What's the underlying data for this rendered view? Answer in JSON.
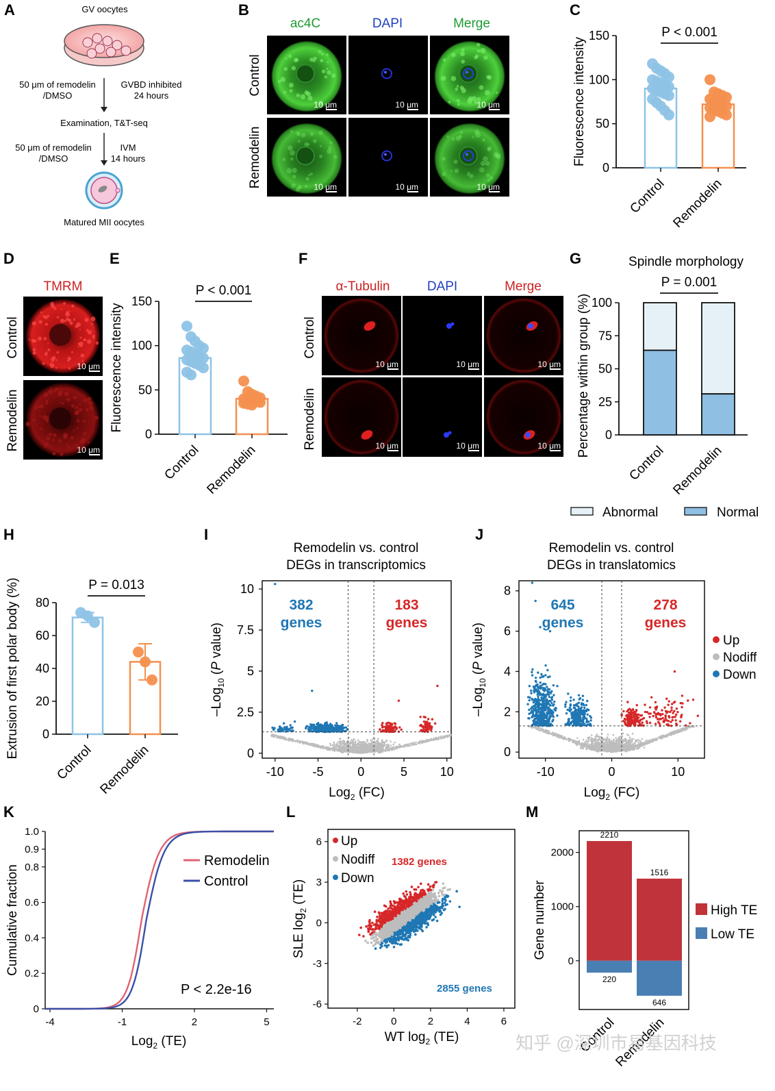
{
  "watermark": "知乎 @深圳市易基因科技",
  "colors": {
    "control": "#8ec3e6",
    "remodelin": "#f4904e",
    "up": "#d62728",
    "down": "#1f77b4",
    "nodiff": "#bdbdbd",
    "green": "#1e9a33",
    "blue": "#1f3fbf",
    "red": "#cc1f1f",
    "navy": "#2d3e9a",
    "hiTE": "#c0333a",
    "loTE": "#4a7fb3"
  },
  "A": {
    "letter": "A",
    "top": "GV oocytes",
    "s1left": "50 μm of remodelin\n/DMSO",
    "s1right": "GVBD inhibited\n24 hours",
    "mid": "Examination, T&T-seq",
    "s2left": "50 μm of remodelin\n/DMSO",
    "s2right": "IVM\n14 hours",
    "bottom": "Matured MII oocytes"
  },
  "B": {
    "letter": "B",
    "cols": [
      "ac4C",
      "DAPI",
      "Merge"
    ],
    "rows": [
      "Control",
      "Remodelin"
    ],
    "scale": "10 μm"
  },
  "C": {
    "letter": "C",
    "ylabel": "Fluorescence intensity",
    "p": "P < 0.001",
    "chart_data": {
      "type": "bar",
      "categories": [
        "Control",
        "Remodelin"
      ],
      "values": [
        90,
        72
      ],
      "ylim": [
        0,
        150
      ],
      "yticks": [
        0,
        50,
        100,
        150
      ],
      "ylabel": "Fluorescence intensity",
      "points": [
        [
          118,
          113,
          110,
          107,
          103,
          100,
          98,
          96,
          94,
          92,
          90,
          88,
          86,
          84,
          82,
          78,
          74,
          70,
          65,
          60
        ],
        [
          100,
          86,
          84,
          82,
          80,
          78,
          76,
          74,
          72,
          70,
          68,
          66,
          64,
          62,
          60,
          58
        ]
      ]
    }
  },
  "D": {
    "letter": "D",
    "title": "TMRM",
    "rows": [
      "Control",
      "Remodelin"
    ],
    "scale": "10 μm"
  },
  "E": {
    "letter": "E",
    "ylabel": "Fluorescence intensity",
    "p": "P < 0.001",
    "chart_data": {
      "type": "bar",
      "categories": [
        "Control",
        "Remodelin"
      ],
      "values": [
        86,
        40
      ],
      "ylim": [
        0,
        150
      ],
      "yticks": [
        0,
        50,
        100,
        150
      ],
      "ylabel": "Fluorescence intensity",
      "points": [
        [
          122,
          110,
          105,
          100,
          97,
          95,
          93,
          90,
          88,
          86,
          84,
          82,
          80,
          78,
          75,
          70,
          67
        ],
        [
          60,
          48,
          45,
          43,
          41,
          40,
          39,
          38,
          37,
          36,
          35,
          34,
          33
        ]
      ]
    }
  },
  "F": {
    "letter": "F",
    "cols": [
      "α-Tubulin",
      "DAPI",
      "Merge"
    ],
    "rows": [
      "Control",
      "Remodelin"
    ],
    "scale": "10 μm"
  },
  "G": {
    "letter": "G",
    "title": "Spindle morphology",
    "p": "P = 0.001",
    "ylabel": "Percentage within group  (%)",
    "chart_data": {
      "type": "bar",
      "categories": [
        "Control",
        "Remodelin"
      ],
      "series": [
        {
          "name": "Normal",
          "values": [
            64,
            31
          ]
        },
        {
          "name": "Abnormal",
          "values": [
            36,
            69
          ]
        }
      ],
      "ylim": [
        0,
        100
      ],
      "yticks": [
        0,
        25,
        50,
        75,
        100
      ]
    },
    "legend": [
      "Abnormal",
      "Normal"
    ]
  },
  "H": {
    "letter": "H",
    "ylabel": "Extrusion of first polar body (%)",
    "p": "P = 0.013",
    "chart_data": {
      "type": "bar",
      "categories": [
        "Control",
        "Remodelin"
      ],
      "values": [
        71,
        44
      ],
      "errors": [
        3,
        11
      ],
      "ylim": [
        0,
        80
      ],
      "yticks": [
        0,
        20,
        40,
        60,
        80
      ],
      "points": [
        [
          74,
          72,
          68
        ],
        [
          50,
          44,
          33
        ]
      ]
    }
  },
  "I": {
    "letter": "I",
    "title1": "Remodelin vs. control",
    "title2": "DEGs in transcriptomics",
    "downN": "382",
    "upN": "183",
    "genes": "genes",
    "xlabel": "Log2 (FC)",
    "ylabel": "-Log10 (P value)",
    "chart_data": {
      "type": "scatter",
      "xlim": [
        -11.5,
        10.5
      ],
      "ylim": [
        -0.3,
        10.5
      ],
      "xticks": [
        -10,
        -5,
        0,
        5,
        10
      ],
      "yticks": [
        0,
        2.5,
        5,
        7.5,
        10
      ],
      "ytickLabels": [
        "0",
        "2.5",
        "5",
        "7.5",
        "10"
      ],
      "vlines": [
        -1.5,
        1.5
      ],
      "hline": 1.3,
      "down_count": 382,
      "up_count": 183
    }
  },
  "J": {
    "letter": "J",
    "title1": "Remodelin vs. control",
    "title2": "DEGs in translatomics",
    "downN": "645",
    "upN": "278",
    "genes": "genes",
    "xlabel": "Log2 (FC)",
    "ylabel": "-Log10 (P value)",
    "legend": [
      "Up",
      "Nodiff",
      "Down"
    ],
    "chart_data": {
      "type": "scatter",
      "xlim": [
        -14,
        14
      ],
      "ylim": [
        -0.3,
        8.5
      ],
      "xticks": [
        -10,
        0,
        10
      ],
      "yticks": [
        0,
        2,
        4,
        6,
        8
      ],
      "vlines": [
        -1.5,
        1.5
      ],
      "hline": 1.3,
      "down_count": 645,
      "up_count": 278
    }
  },
  "K": {
    "letter": "K",
    "ylabel": "Cumulative fraction",
    "xlabel": "Log2 (TE)",
    "p": "P < 2.2e-16",
    "legend": [
      "Remodelin",
      "Control"
    ],
    "chart_data": {
      "type": "line",
      "xlim": [
        -4.2,
        5.3
      ],
      "ylim": [
        0,
        1
      ],
      "xticks": [
        -4,
        -1,
        2,
        5
      ],
      "yticks": [
        0,
        0.2,
        0.4,
        0.6,
        0.8,
        0.9,
        1.0
      ],
      "ytickLabels": [
        "0",
        "0.2",
        "0.4",
        "0.6",
        "0.8",
        "0.9",
        "1.0"
      ],
      "series": [
        {
          "name": "Remodelin",
          "median": -0.2
        },
        {
          "name": "Control",
          "median": 0.0
        }
      ]
    }
  },
  "L": {
    "letter": "L",
    "legend": [
      "Up",
      "Nodiff",
      "Down"
    ],
    "upLabel": "1382 genes",
    "downLabel": "2855 genes",
    "xlabel": "WT log2 (TE)",
    "ylabel": "SLE log2 (TE)",
    "chart_data": {
      "type": "scatter",
      "xlim": [
        -3.6,
        6.6
      ],
      "ylim": [
        -6.3,
        6.9
      ],
      "xticks": [
        -2,
        0,
        2,
        4,
        6
      ],
      "yticks": [
        -6,
        -3,
        0,
        3,
        6
      ],
      "up_count": 1382,
      "down_count": 2855
    }
  },
  "M": {
    "letter": "M",
    "ylabel": "Gene number",
    "legend": [
      "High TE",
      "Low TE"
    ],
    "chart_data": {
      "type": "bar",
      "categories": [
        "Control",
        "Remodelin"
      ],
      "series": [
        {
          "name": "High TE",
          "values": [
            2210,
            1516
          ]
        },
        {
          "name": "Low TE",
          "values": [
            -220,
            -646
          ]
        }
      ],
      "ylim": [
        -900,
        2400
      ],
      "yticks": [
        0,
        1000,
        2000
      ],
      "labels": [
        "2210",
        "1516",
        "220",
        "646"
      ]
    }
  }
}
